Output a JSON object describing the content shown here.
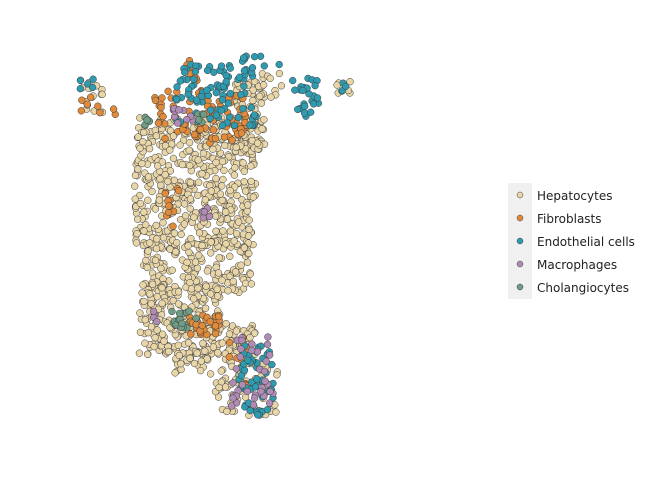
{
  "chart_data": {
    "type": "scatter",
    "title": "",
    "xlabel": "",
    "ylabel": "",
    "grid": false,
    "axes_visible": false,
    "legend_placement": "right",
    "xlim": [
      0,
      100
    ],
    "ylim": [
      0,
      100
    ],
    "description_of_points": "Spatial scatter of cells (x, y in arbitrary spatial units, origin bottom-left). Each point is one cell colored by cell type.",
    "series": [
      {
        "name": "Hepatocytes",
        "color": "#e8d5a8",
        "regions": [
          {
            "x": [
              21,
              48
            ],
            "y": [
              48,
              78
            ],
            "count": 520
          },
          {
            "x": [
              23,
              47
            ],
            "y": [
              38,
              50
            ],
            "count": 170
          },
          {
            "x": [
              22,
              40
            ],
            "y": [
              24,
              40
            ],
            "count": 200
          },
          {
            "x": [
              36,
              48
            ],
            "y": [
              22,
              31
            ],
            "count": 70
          },
          {
            "x": [
              30,
              38
            ],
            "y": [
              19,
              25
            ],
            "count": 30
          },
          {
            "x": [
              39,
              53
            ],
            "y": [
              10,
              22
            ],
            "count": 70
          },
          {
            "x": [
              43,
              50
            ],
            "y": [
              70,
              86
            ],
            "count": 90
          },
          {
            "x": [
              9,
              14
            ],
            "y": [
              79,
              86
            ],
            "count": 16
          },
          {
            "x": [
              66,
              69
            ],
            "y": [
              83,
              86
            ],
            "count": 6
          },
          {
            "x": [
              48,
              54
            ],
            "y": [
              82,
              88
            ],
            "count": 10
          }
        ]
      },
      {
        "name": "Fibroblasts",
        "color": "#e08b3c",
        "regions": [
          {
            "x": [
              25,
              46
            ],
            "y": [
              72,
              84
            ],
            "count": 90
          },
          {
            "x": [
              33,
              40
            ],
            "y": [
              28,
              33
            ],
            "count": 30
          },
          {
            "x": [
              27,
              31
            ],
            "y": [
              53,
              62
            ],
            "count": 12
          },
          {
            "x": [
              42,
              46
            ],
            "y": [
              16,
              31
            ],
            "count": 14
          },
          {
            "x": [
              32,
              36
            ],
            "y": [
              86,
              91
            ],
            "count": 10
          },
          {
            "x": [
              9,
              17
            ],
            "y": [
              78,
              83
            ],
            "count": 8
          }
        ]
      },
      {
        "name": "Endothelial cells",
        "color": "#2f9bb0",
        "regions": [
          {
            "x": [
              30,
              48
            ],
            "y": [
              76,
              90
            ],
            "count": 90
          },
          {
            "x": [
              44,
              52
            ],
            "y": [
              10,
              26
            ],
            "count": 50
          },
          {
            "x": [
              56,
              62
            ],
            "y": [
              78,
              87
            ],
            "count": 25
          },
          {
            "x": [
              8,
              12
            ],
            "y": [
              84,
              87
            ],
            "count": 6
          },
          {
            "x": [
              45,
              54
            ],
            "y": [
              88,
              92
            ],
            "count": 10
          },
          {
            "x": [
              67,
              69
            ],
            "y": [
              83,
              86
            ],
            "count": 4
          }
        ]
      },
      {
        "name": "Macrophages",
        "color": "#b08bb5",
        "regions": [
          {
            "x": [
              42,
              52
            ],
            "y": [
              12,
              28
            ],
            "count": 35
          },
          {
            "x": [
              29,
              34
            ],
            "y": [
              76,
              80
            ],
            "count": 10
          },
          {
            "x": [
              36,
              38
            ],
            "y": [
              54,
              58
            ],
            "count": 5
          },
          {
            "x": [
              25,
              27
            ],
            "y": [
              30,
              34
            ],
            "count": 4
          }
        ]
      },
      {
        "name": "Cholangiocytes",
        "color": "#6f9c84",
        "regions": [
          {
            "x": [
              29,
              35
            ],
            "y": [
              30,
              34
            ],
            "count": 18
          },
          {
            "x": [
              23,
              25
            ],
            "y": [
              75,
              78
            ],
            "count": 5
          },
          {
            "x": [
              34,
              37
            ],
            "y": [
              76,
              79
            ],
            "count": 5
          }
        ]
      }
    ]
  },
  "legend": {
    "items": [
      {
        "label": "Hepatocytes",
        "color": "#e8d5a8"
      },
      {
        "label": "Fibroblasts",
        "color": "#e08b3c"
      },
      {
        "label": "Endothelial cells",
        "color": "#2f9bb0"
      },
      {
        "label": "Macrophages",
        "color": "#b08bb5"
      },
      {
        "label": "Cholangiocytes",
        "color": "#6f9c84"
      }
    ]
  }
}
